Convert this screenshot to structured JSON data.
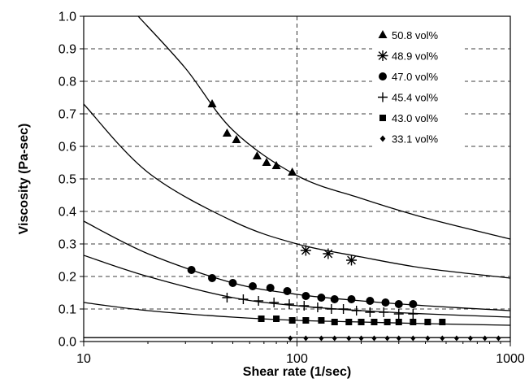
{
  "chart_data": {
    "type": "scatter",
    "title": "",
    "xlabel": "Shear rate (1/sec)",
    "ylabel": "Viscosity (Pa-sec)",
    "xscale": "log",
    "xlim": [
      10,
      1000
    ],
    "ylim": [
      0,
      1.0
    ],
    "x_ticks": [
      "10",
      "100",
      "1000"
    ],
    "y_ticks": [
      "0.0",
      "0.1",
      "0.2",
      "0.3",
      "0.4",
      "0.5",
      "0.6",
      "0.7",
      "0.8",
      "0.9",
      "1.0"
    ],
    "grid": "horizontal dashed at every 0.1, vertical dashed at 100",
    "legend_position": "top-right",
    "series": [
      {
        "name": "50.8 vol%",
        "marker": "triangle",
        "x": [
          40,
          47,
          52,
          65,
          72,
          80,
          95
        ],
        "y": [
          0.73,
          0.64,
          0.62,
          0.57,
          0.55,
          0.54,
          0.52
        ],
        "fit_curve": {
          "x": [
            18,
            30,
            50,
            100,
            200,
            400,
            1000
          ],
          "y": [
            1.0,
            0.84,
            0.65,
            0.51,
            0.44,
            0.38,
            0.315
          ]
        }
      },
      {
        "name": "48.9 vol%",
        "marker": "asterisk",
        "x": [
          110,
          140,
          180
        ],
        "y": [
          0.28,
          0.27,
          0.25
        ],
        "fit_curve": {
          "x": [
            10,
            20,
            50,
            100,
            200,
            400,
            1000
          ],
          "y": [
            0.73,
            0.52,
            0.37,
            0.3,
            0.26,
            0.225,
            0.195
          ]
        }
      },
      {
        "name": "47.0 vol%",
        "marker": "circle",
        "x": [
          32,
          40,
          50,
          62,
          75,
          90,
          110,
          130,
          150,
          180,
          220,
          260,
          300,
          350
        ],
        "y": [
          0.22,
          0.195,
          0.18,
          0.17,
          0.165,
          0.155,
          0.14,
          0.135,
          0.13,
          0.13,
          0.125,
          0.12,
          0.115,
          0.115
        ],
        "fit_curve": {
          "x": [
            10,
            20,
            50,
            100,
            200,
            400,
            1000
          ],
          "y": [
            0.37,
            0.27,
            0.18,
            0.145,
            0.125,
            0.11,
            0.095
          ]
        }
      },
      {
        "name": "45.4 vol%",
        "marker": "plus",
        "x": [
          47,
          56,
          66,
          78,
          92,
          108,
          125,
          145,
          165,
          190,
          220,
          255,
          300,
          350
        ],
        "y": [
          0.135,
          0.13,
          0.125,
          0.12,
          0.115,
          0.11,
          0.105,
          0.1,
          0.1,
          0.095,
          0.09,
          0.09,
          0.085,
          0.085
        ],
        "fit_curve": {
          "x": [
            10,
            20,
            50,
            100,
            200,
            400,
            1000
          ],
          "y": [
            0.265,
            0.2,
            0.135,
            0.11,
            0.095,
            0.085,
            0.075
          ]
        }
      },
      {
        "name": "43.0 vol%",
        "marker": "square",
        "x": [
          68,
          80,
          95,
          110,
          130,
          150,
          175,
          200,
          230,
          265,
          300,
          350,
          410,
          480
        ],
        "y": [
          0.07,
          0.07,
          0.065,
          0.065,
          0.065,
          0.06,
          0.06,
          0.06,
          0.06,
          0.06,
          0.06,
          0.06,
          0.06,
          0.06
        ],
        "fit_curve": {
          "x": [
            10,
            20,
            50,
            100,
            200,
            400,
            1000
          ],
          "y": [
            0.12,
            0.095,
            0.075,
            0.065,
            0.06,
            0.055,
            0.05
          ]
        }
      },
      {
        "name": "33.1 vol%",
        "marker": "diamond",
        "x": [
          93,
          110,
          130,
          150,
          175,
          200,
          230,
          265,
          300,
          350,
          410,
          480,
          560,
          650,
          760,
          880
        ],
        "y": [
          0.01,
          0.01,
          0.01,
          0.01,
          0.01,
          0.01,
          0.01,
          0.01,
          0.01,
          0.01,
          0.01,
          0.01,
          0.01,
          0.01,
          0.01,
          0.01
        ],
        "fit_curve": {
          "x": [
            10,
            1000
          ],
          "y": [
            0.012,
            0.012
          ]
        }
      }
    ]
  }
}
